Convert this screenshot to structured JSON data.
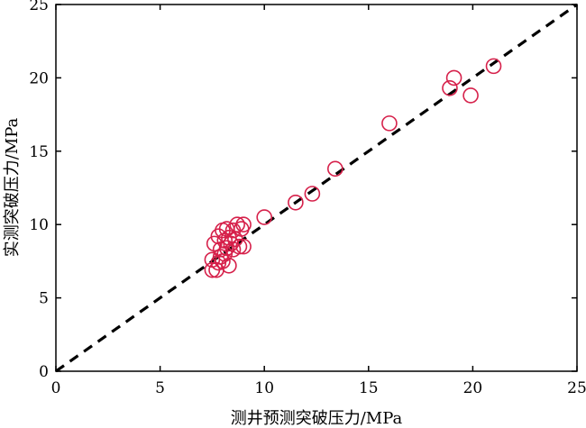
{
  "chart_data": {
    "type": "scatter",
    "title": "",
    "xlabel": "测井预测突破压力/MPa",
    "ylabel": "实测突破压力/MPa",
    "xlim": [
      0,
      25
    ],
    "ylim": [
      0,
      25
    ],
    "xticks": [
      "0",
      "5",
      "10",
      "15",
      "20",
      "25"
    ],
    "yticks": [
      "0",
      "5",
      "10",
      "15",
      "20",
      "25"
    ],
    "grid": false,
    "marker": "open-circle",
    "marker_color": "#d6204a",
    "reference_line": {
      "style": "dashed",
      "color": "#000000",
      "from": [
        0,
        0
      ],
      "to": [
        25,
        25
      ]
    },
    "series": [
      {
        "points": [
          [
            7.5,
            6.9
          ],
          [
            7.7,
            6.9
          ],
          [
            7.5,
            7.6
          ],
          [
            7.8,
            7.4
          ],
          [
            8.0,
            7.5
          ],
          [
            8.3,
            7.2
          ],
          [
            7.9,
            7.8
          ],
          [
            8.1,
            8.0
          ],
          [
            7.6,
            8.7
          ],
          [
            7.9,
            8.3
          ],
          [
            8.2,
            8.4
          ],
          [
            8.5,
            8.3
          ],
          [
            7.8,
            9.2
          ],
          [
            8.0,
            9.6
          ],
          [
            8.2,
            9.7
          ],
          [
            8.5,
            9.6
          ],
          [
            8.3,
            9.1
          ],
          [
            8.6,
            9.0
          ],
          [
            8.8,
            8.5
          ],
          [
            9.0,
            8.5
          ],
          [
            8.9,
            9.7
          ],
          [
            8.7,
            10.0
          ],
          [
            9.0,
            10.0
          ],
          [
            8.1,
            8.9
          ],
          [
            8.4,
            8.7
          ],
          [
            10.0,
            10.5
          ],
          [
            11.5,
            11.5
          ],
          [
            12.3,
            12.1
          ],
          [
            13.4,
            13.8
          ],
          [
            16.0,
            16.9
          ],
          [
            18.9,
            19.3
          ],
          [
            19.1,
            20.0
          ],
          [
            19.9,
            18.8
          ],
          [
            21.0,
            20.8
          ]
        ]
      }
    ]
  }
}
